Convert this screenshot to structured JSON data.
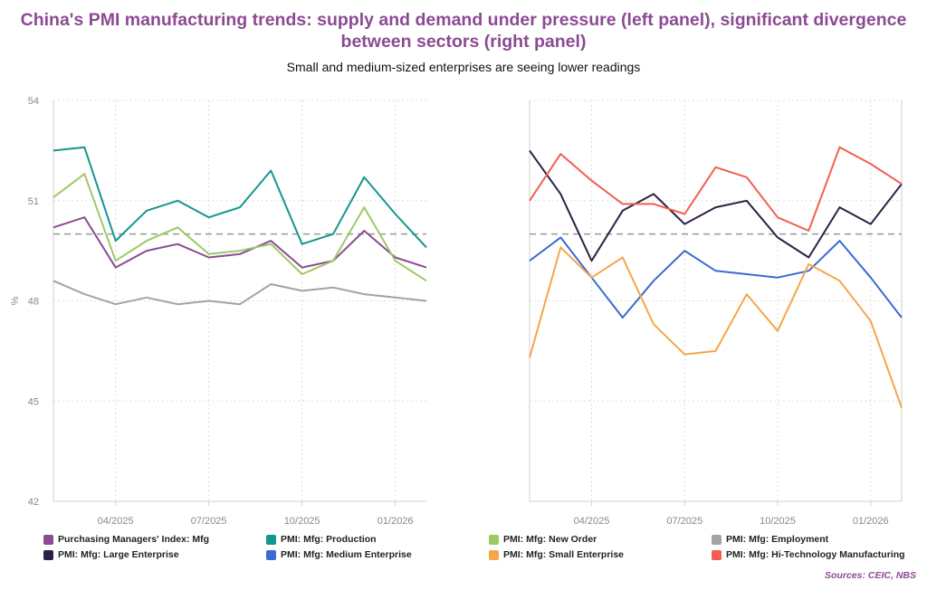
{
  "header": {
    "title": "China's PMI manufacturing trends: supply and demand under pressure (left panel), significant divergence between sectors (right panel)",
    "subtitle": "Small and medium-sized enterprises are seeing lower readings"
  },
  "footer": {
    "source": "Sources: CEIC, NBS"
  },
  "chart_data": [
    {
      "type": "line",
      "panel": "left",
      "x": [
        "2025-02",
        "2025-03",
        "2025-04",
        "2025-05",
        "2025-06",
        "2025-07",
        "2025-08",
        "2025-09",
        "2025-10",
        "2025-11",
        "2025-12",
        "2026-01",
        "2026-02"
      ],
      "x_tick_labels": [
        "04/2025",
        "07/2025",
        "10/2025",
        "01/2026"
      ],
      "ylabel": "%",
      "ylim": [
        42,
        54
      ],
      "yticks": [
        42,
        45,
        48,
        51,
        54
      ],
      "reference_line": 50,
      "grid": true,
      "series": [
        {
          "name": "Purchasing Managers' Index: Mfg",
          "color": "#8b4b92",
          "values": [
            50.2,
            50.5,
            49.0,
            49.5,
            49.7,
            49.3,
            49.4,
            49.8,
            49.0,
            49.2,
            50.1,
            49.3,
            49.0
          ]
        },
        {
          "name": "PMI: Mfg: Production",
          "color": "#15958f",
          "values": [
            52.5,
            52.6,
            49.8,
            50.7,
            51.0,
            50.5,
            50.8,
            51.9,
            49.7,
            50.0,
            51.7,
            50.6,
            49.6
          ]
        },
        {
          "name": "PMI: Mfg: New Order",
          "color": "#9dc965",
          "values": [
            51.1,
            51.8,
            49.2,
            49.8,
            50.2,
            49.4,
            49.5,
            49.7,
            48.8,
            49.2,
            50.8,
            49.2,
            48.6
          ]
        },
        {
          "name": "PMI: Mfg: Employment",
          "color": "#a3a3a3",
          "values": [
            48.6,
            48.2,
            47.9,
            48.1,
            47.9,
            48.0,
            47.9,
            48.5,
            48.3,
            48.4,
            48.2,
            48.1,
            48.0
          ]
        }
      ]
    },
    {
      "type": "line",
      "panel": "right",
      "x": [
        "2025-02",
        "2025-03",
        "2025-04",
        "2025-05",
        "2025-06",
        "2025-07",
        "2025-08",
        "2025-09",
        "2025-10",
        "2025-11",
        "2025-12",
        "2026-01",
        "2026-02"
      ],
      "x_tick_labels": [
        "04/2025",
        "07/2025",
        "10/2025",
        "01/2026"
      ],
      "ylim": [
        42,
        54
      ],
      "reference_line": 50,
      "grid": true,
      "series": [
        {
          "name": "PMI: Mfg: Large Enterprise",
          "color": "#2d2142",
          "values": [
            52.5,
            51.2,
            49.2,
            50.7,
            51.2,
            50.3,
            50.8,
            51.0,
            49.9,
            49.3,
            50.8,
            50.3,
            51.5
          ]
        },
        {
          "name": "PMI: Mfg: Medium Enterprise",
          "color": "#3a6bd0",
          "values": [
            49.2,
            49.9,
            48.7,
            47.5,
            48.6,
            49.5,
            48.9,
            48.8,
            48.7,
            48.9,
            49.8,
            48.7,
            47.5
          ]
        },
        {
          "name": "PMI: Mfg: Small Enterprise",
          "color": "#f6a549",
          "values": [
            46.3,
            49.6,
            48.7,
            49.3,
            47.3,
            46.4,
            46.5,
            48.2,
            47.1,
            49.1,
            48.6,
            47.4,
            44.8
          ]
        },
        {
          "name": "PMI: Mfg: Hi-Technology Manufacturing",
          "color": "#f25f4f",
          "values": [
            51.0,
            52.4,
            51.6,
            50.9,
            50.9,
            50.6,
            52.0,
            51.7,
            50.5,
            50.1,
            52.6,
            52.1,
            51.5
          ]
        }
      ]
    }
  ]
}
